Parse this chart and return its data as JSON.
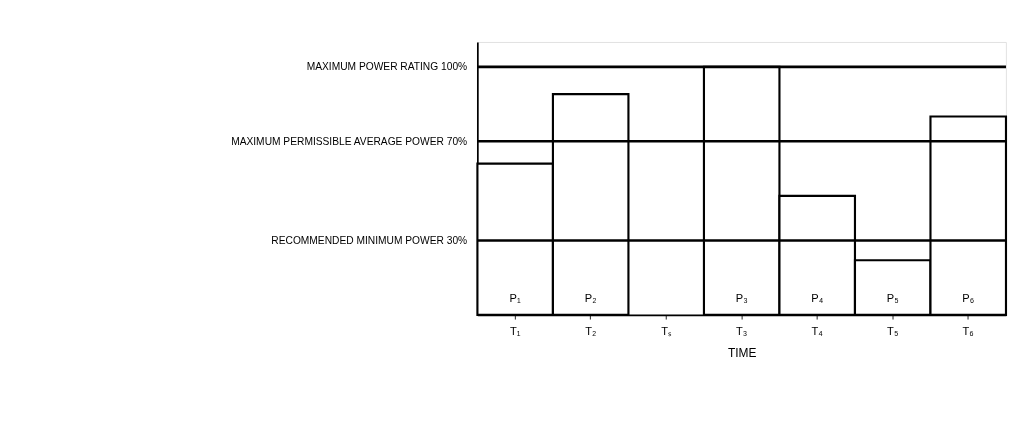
{
  "chart_data": {
    "type": "bar",
    "xlabel": "TIME",
    "categories": [
      "T₁",
      "T₂",
      "Tₛ",
      "T₃",
      "T₄",
      "T₅",
      "T₆"
    ],
    "values": [
      61,
      89,
      null,
      100,
      48,
      22,
      80
    ],
    "color": "#ffffff",
    "ylim": [
      0,
      110
    ],
    "tick_labels": "x",
    "grid": false,
    "ref_lines": [
      {
        "axis": "y",
        "value": 100,
        "label": "MAXIMUM POWER RATING 100%",
        "color": "#000000"
      },
      {
        "axis": "y",
        "value": 70,
        "label": "MAXIMUM PERMISSIBLE AVERAGE POWER 70%",
        "color": "#000000"
      },
      {
        "axis": "y",
        "value": 30,
        "label": "RECOMMENDED MINIMUM POWER 30%",
        "color": "#000000"
      }
    ],
    "annotations": [
      "P₁",
      "P₂",
      "P₃",
      "P₄",
      "P₅",
      "P₆"
    ]
  }
}
